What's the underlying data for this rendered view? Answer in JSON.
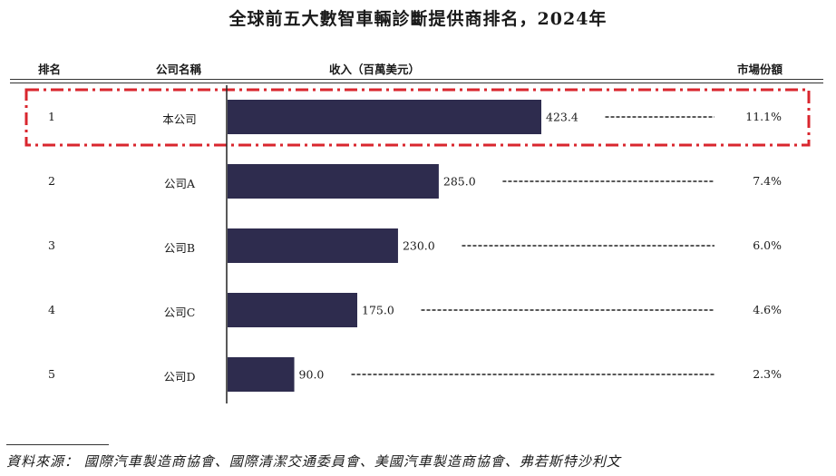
{
  "title": "全球前五大數智車輛診斷提供商排名，2024年",
  "headers": {
    "rank": "排名",
    "company": "公司名稱",
    "revenue": "收入（百萬美元）",
    "share": "市場份額"
  },
  "rows": [
    {
      "rank": "1",
      "company": "本公司",
      "revenue": "423.4",
      "share": "11.1%",
      "highlight": true
    },
    {
      "rank": "2",
      "company": "公司A",
      "revenue": "285.0",
      "share": "7.4%"
    },
    {
      "rank": "3",
      "company": "公司B",
      "revenue": "230.0",
      "share": "6.0%"
    },
    {
      "rank": "4",
      "company": "公司C",
      "revenue": "175.0",
      "share": "4.6%"
    },
    {
      "rank": "5",
      "company": "公司D",
      "revenue": "90.0",
      "share": "2.3%"
    }
  ],
  "source": "資料來源：  國際汽車製造商協會、國際清潔交通委員會、美國汽車製造商協會、弗若斯特沙利文",
  "colors": {
    "bar": "#2e2c4e",
    "highlight_frame": "#d9262e",
    "rule": "#333333"
  },
  "chart_data": {
    "type": "bar",
    "orientation": "horizontal",
    "title": "全球前五大數智車輛診斷提供商排名，2024年",
    "categories": [
      "本公司",
      "公司A",
      "公司B",
      "公司C",
      "公司D"
    ],
    "values": [
      423.4,
      285.0,
      230.0,
      175.0,
      90.0
    ],
    "market_share": [
      "11.1%",
      "7.4%",
      "6.0%",
      "4.6%",
      "2.3%"
    ],
    "xlabel": "收入（百萬美元）",
    "grid": false,
    "legend": "none"
  }
}
